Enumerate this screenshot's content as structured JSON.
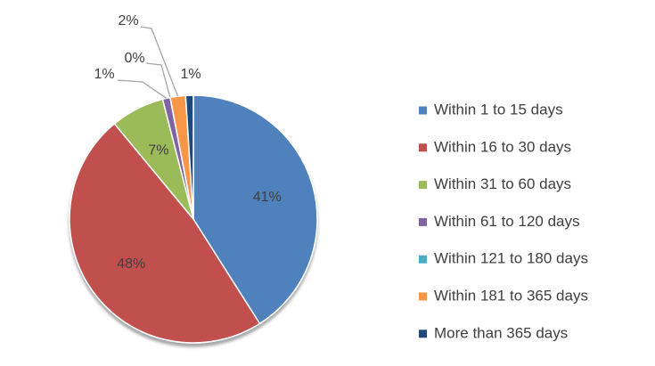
{
  "chart_data": {
    "type": "pie",
    "categories": [
      "Within 1 to 15 days",
      "Within 16 to 30 days",
      "Within 31 to 60 days",
      "Within 61 to 120 days",
      "Within 121 to 180 days",
      "Within 181 to 365 days",
      "More than 365 days"
    ],
    "values": [
      41,
      48,
      7,
      1,
      0,
      2,
      1
    ],
    "value_labels": [
      "41%",
      "48%",
      "7%",
      "1%",
      "0%",
      "2%",
      "1%"
    ],
    "colors": [
      "#4f81bd",
      "#c0504d",
      "#9bbb59",
      "#8064a2",
      "#4bacc6",
      "#f79646",
      "#1f497d"
    ],
    "legend": "right"
  }
}
